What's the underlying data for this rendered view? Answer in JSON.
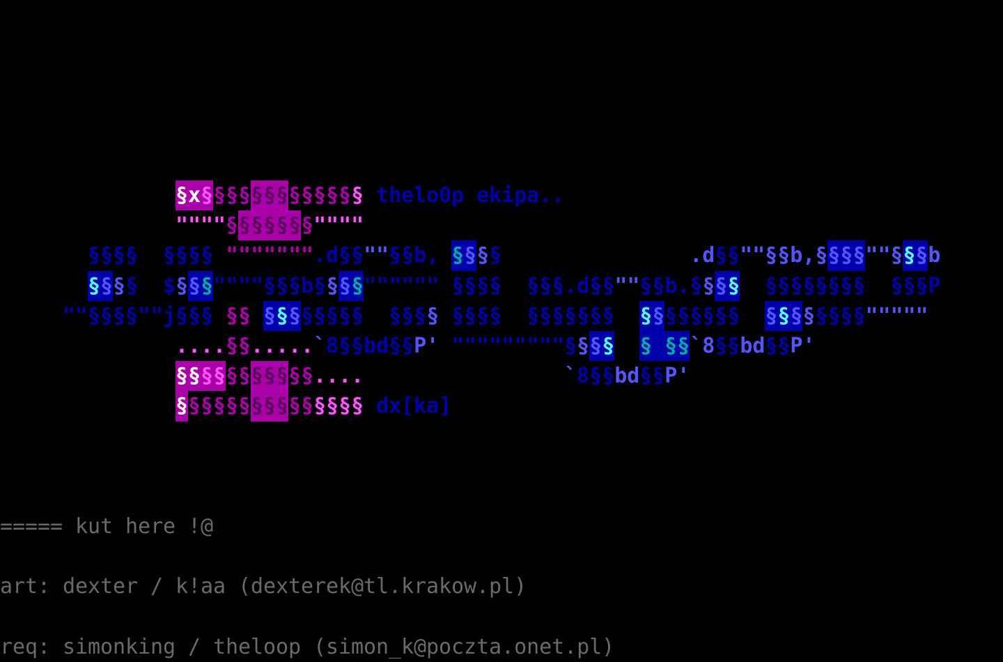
{
  "palette": {
    "b": "#0000aa",
    "B": "#5555ff",
    "c": "#00aaaa",
    "C": "#55ffff",
    "m": "#aa00aa",
    "M": "#ff55ff",
    "w": "#ffffff",
    "d": "#5a005a",
    "g": "#6a6a6a"
  },
  "lines": [
    [],
    [],
    [],
    [],
    [],
    [],
    [
      [
        "              ",
        "",
        ""
      ],
      [
        "§x",
        "w",
        "m"
      ],
      [
        "§",
        "M",
        "m"
      ],
      [
        "§§§",
        "m",
        ""
      ],
      [
        "§§§",
        "d",
        "m"
      ],
      [
        "§§§§§",
        "m",
        ""
      ],
      [
        "§",
        "M",
        ""
      ],
      [
        " ",
        "",
        ""
      ],
      [
        "thelo0p ekipa..",
        "b",
        ""
      ]
    ],
    [
      [
        "              ",
        "",
        ""
      ],
      [
        "\"\"\"\"",
        "M",
        ""
      ],
      [
        "§",
        "m",
        ""
      ],
      [
        "§§§§§",
        "d",
        "m"
      ],
      [
        "§",
        "m",
        ""
      ],
      [
        "\"\"\"\"",
        "M",
        ""
      ]
    ],
    [
      [
        "       ",
        "",
        ""
      ],
      [
        "§§§§",
        "b",
        ""
      ],
      [
        "  ",
        "",
        ""
      ],
      [
        "§§§§",
        "b",
        ""
      ],
      [
        " ",
        "",
        ""
      ],
      [
        "\"\"\"\"\"\"\"",
        "m",
        ""
      ],
      [
        ".d§§",
        "b",
        ""
      ],
      [
        "\"\"",
        "B",
        ""
      ],
      [
        "§§b,",
        "b",
        ""
      ],
      [
        " ",
        "",
        ""
      ],
      [
        "§",
        "c",
        "b"
      ],
      [
        "§",
        "B",
        "b"
      ],
      [
        "§",
        "B",
        ""
      ],
      [
        "§",
        "b",
        ""
      ],
      [
        "               ",
        "",
        ""
      ],
      [
        ".d",
        "B",
        ""
      ],
      [
        "§§",
        "b",
        ""
      ],
      [
        "\"\"",
        "B",
        ""
      ],
      [
        "§§b,",
        "B",
        ""
      ],
      [
        "§",
        "B",
        ""
      ],
      [
        "§§§",
        "B",
        "b"
      ],
      [
        "\"\"",
        "B",
        ""
      ],
      [
        "§",
        "B",
        ""
      ],
      [
        "§",
        "C",
        "b"
      ],
      [
        "§",
        "B",
        "b"
      ],
      [
        "b",
        "B",
        ""
      ]
    ],
    [
      [
        "       ",
        "",
        ""
      ],
      [
        "§",
        "C",
        "b"
      ],
      [
        "§",
        "B",
        "b"
      ],
      [
        "§",
        "B",
        ""
      ],
      [
        "§",
        "b",
        ""
      ],
      [
        "  ",
        "",
        ""
      ],
      [
        "$",
        "b",
        ""
      ],
      [
        "§",
        "B",
        ""
      ],
      [
        "§",
        "B",
        "b"
      ],
      [
        "§",
        "c",
        "b"
      ],
      [
        "\"\"\"\"",
        "b",
        ""
      ],
      [
        "§§§b§",
        "b",
        ""
      ],
      [
        "§",
        "B",
        ""
      ],
      [
        "§",
        "B",
        "b"
      ],
      [
        "§",
        "c",
        "b"
      ],
      [
        "\"\"\"\"\"\"",
        "b",
        ""
      ],
      [
        " ",
        "",
        ""
      ],
      [
        "§§§§",
        "b",
        ""
      ],
      [
        "  ",
        "",
        ""
      ],
      [
        "§§§.d§§",
        "b",
        ""
      ],
      [
        "\"\"",
        "B",
        ""
      ],
      [
        "§§b.",
        "b",
        ""
      ],
      [
        "§",
        "b",
        ""
      ],
      [
        "§",
        "B",
        ""
      ],
      [
        "§",
        "B",
        "b"
      ],
      [
        "§",
        "C",
        "b"
      ],
      [
        "  ",
        "",
        ""
      ],
      [
        "§§§§§§§§",
        "b",
        ""
      ],
      [
        "  ",
        "",
        ""
      ],
      [
        "§§§P",
        "b",
        ""
      ]
    ],
    [
      [
        "     ",
        "",
        ""
      ],
      [
        "\"\"",
        "b",
        ""
      ],
      [
        "§§§§",
        "b",
        ""
      ],
      [
        "\"\"",
        "b",
        ""
      ],
      [
        "j§§§",
        "b",
        ""
      ],
      [
        " ",
        "",
        ""
      ],
      [
        "§§",
        "m",
        ""
      ],
      [
        " ",
        "",
        ""
      ],
      [
        "§",
        "B",
        "b"
      ],
      [
        "§",
        "C",
        "b"
      ],
      [
        "§",
        "B",
        "b"
      ],
      [
        "§§§§§",
        "b",
        ""
      ],
      [
        "  ",
        "",
        ""
      ],
      [
        "§§§",
        "b",
        ""
      ],
      [
        "§",
        "B",
        ""
      ],
      [
        " ",
        "",
        ""
      ],
      [
        "§§§§",
        "b",
        ""
      ],
      [
        "  ",
        "",
        ""
      ],
      [
        "§§§§§§§",
        "b",
        ""
      ],
      [
        "  ",
        "",
        ""
      ],
      [
        "§",
        "C",
        "b"
      ],
      [
        "§",
        "B",
        "b"
      ],
      [
        "§§§§§§",
        "b",
        ""
      ],
      [
        "  ",
        "",
        ""
      ],
      [
        "§",
        "B",
        "b"
      ],
      [
        "§",
        "C",
        "b"
      ],
      [
        "§",
        "B",
        "b"
      ],
      [
        "§",
        "B",
        ""
      ],
      [
        "§§§§",
        "b",
        ""
      ],
      [
        "\"\"\"\"\"",
        "B",
        ""
      ]
    ],
    [
      [
        "              ",
        "",
        ""
      ],
      [
        "....",
        "M",
        ""
      ],
      [
        "§§",
        "m",
        ""
      ],
      [
        ".....",
        "M",
        ""
      ],
      [
        "`",
        "B",
        ""
      ],
      [
        "8§§bd§§",
        "b",
        ""
      ],
      [
        "P'",
        "B",
        ""
      ],
      [
        " ",
        "",
        ""
      ],
      [
        "\"\"\"\"\"\"\"\"\"",
        "b",
        ""
      ],
      [
        "§",
        "b",
        ""
      ],
      [
        "§",
        "B",
        ""
      ],
      [
        "§",
        "B",
        "b"
      ],
      [
        "§",
        "C",
        "b"
      ],
      [
        "  ",
        "",
        ""
      ],
      [
        "§",
        "c",
        "b"
      ],
      [
        "§",
        "b",
        "b"
      ],
      [
        "§§",
        "c",
        "b"
      ],
      [
        "`8",
        "B",
        ""
      ],
      [
        "§§",
        "b",
        ""
      ],
      [
        "bd",
        "B",
        ""
      ],
      [
        "§§",
        "b",
        ""
      ],
      [
        "P'",
        "B",
        ""
      ]
    ],
    [
      [
        "              ",
        "",
        ""
      ],
      [
        "§§",
        "w",
        "m"
      ],
      [
        "§§",
        "M",
        "m"
      ],
      [
        "§§",
        "m",
        ""
      ],
      [
        "§§§",
        "d",
        "m"
      ],
      [
        "§§",
        "m",
        ""
      ],
      [
        "....",
        "M",
        ""
      ],
      [
        "                ",
        "",
        ""
      ],
      [
        "`",
        "B",
        ""
      ],
      [
        "8§§",
        "b",
        ""
      ],
      [
        "bd",
        "B",
        ""
      ],
      [
        "§§",
        "b",
        ""
      ],
      [
        "P'",
        "B",
        ""
      ]
    ],
    [
      [
        "              ",
        "",
        ""
      ],
      [
        "§",
        "w",
        "m"
      ],
      [
        "§§§§§",
        "m",
        ""
      ],
      [
        "§§§",
        "d",
        "m"
      ],
      [
        "§§",
        "m",
        ""
      ],
      [
        "§§§§",
        "M",
        ""
      ],
      [
        " ",
        "",
        ""
      ],
      [
        "dx[ka]",
        "b",
        ""
      ]
    ],
    [],
    [],
    [],
    [
      [
        "===== kut here !@",
        "g",
        ""
      ]
    ],
    [],
    [
      [
        "art: dexter / k!aa (dexterek@tl.krakow.pl)",
        "g",
        ""
      ]
    ],
    [],
    [
      [
        "req: simonking / theloop (simon_k@poczta.onet.pl)",
        "g",
        ""
      ]
    ]
  ]
}
